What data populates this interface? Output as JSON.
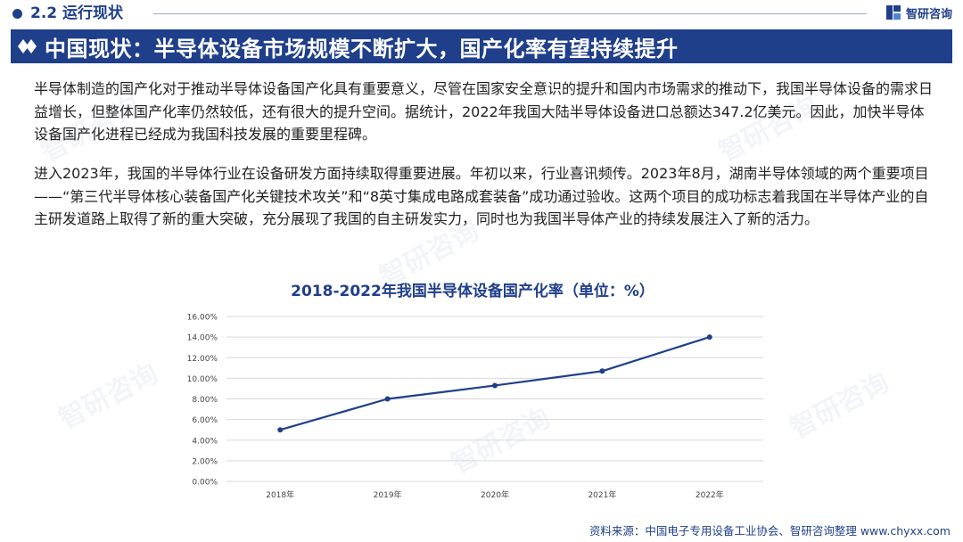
{
  "header": {
    "section": "2.2 运行现状",
    "brand": "智研咨询"
  },
  "title": "中国现状：半导体设备市场规模不断扩大，国产化率有望持续提升",
  "paragraphs": [
    "半导体制造的国产化对于推动半导体设备国产化具有重要意义，尽管在国家安全意识的提升和国内市场需求的推动下，我国半导体设备的需求日益增长，但整体国产化率仍然较低，还有很大的提升空间。据统计，2022年我国大陆半导体设备进口总额达347.2亿美元。因此，加快半导体设备国产化进程已经成为我国科技发展的重要里程碑。",
    "进入2023年，我国的半导体行业在设备研发方面持续取得重要进展。年初以来，行业喜讯频传。2023年8月，湖南半导体领域的两个重要项目——“第三代半导体核心装备国产化关键技术攻关”和“8英寸集成电路成套装备”成功通过验收。这两个项目的成功标志着我国在半导体产业的自主研发道路上取得了新的重大突破，充分展现了我国的自主研发实力，同时也为我国半导体产业的持续发展注入了新的活力。"
  ],
  "chart_data": {
    "type": "line",
    "title": "2018-2022年我国半导体设备国产化率（单位：%）",
    "categories": [
      "2018年",
      "2019年",
      "2020年",
      "2021年",
      "2022年"
    ],
    "series": [
      {
        "values": [
          5.0,
          8.0,
          9.3,
          10.7,
          14.0
        ]
      }
    ],
    "ylim": [
      0,
      16
    ],
    "yticks": [
      0,
      2,
      4,
      6,
      8,
      10,
      12,
      14,
      16
    ],
    "ytick_labels": [
      "0.00%",
      "2.00%",
      "4.00%",
      "6.00%",
      "8.00%",
      "10.00%",
      "12.00%",
      "14.00%",
      "16.00%"
    ],
    "grid": true,
    "legend": "none",
    "line_color": "#1f3f8a"
  },
  "source": "资料来源：中国电子专用设备工业协会、智研咨询整理 www.chyxx.com",
  "watermark": "智研咨询",
  "colors": {
    "brand_blue": "#1f3f8a",
    "grid": "#d9d9d9"
  }
}
